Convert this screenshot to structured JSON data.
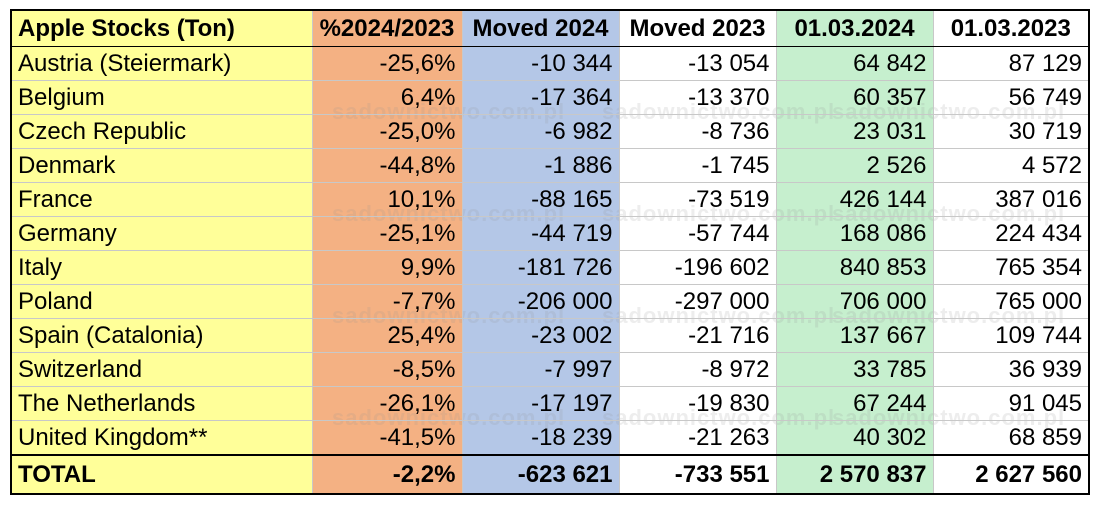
{
  "colors": {
    "country_col": "#ffff99",
    "pct_col": "#f4b183",
    "moved2024_col": "#b4c7e7",
    "moved2023_col": "#ffffff",
    "stock2024_col": "#c6efce",
    "stock2023_col": "#ffffff"
  },
  "watermark": "sadownictwo.com.pl",
  "table": {
    "headers": [
      "Apple Stocks (Ton)",
      "%2024/2023",
      "Moved 2024",
      "Moved 2023",
      "01.03.2024",
      "01.03.2023"
    ],
    "rows": [
      [
        "Austria (Steiermark)",
        "-25,6%",
        "-10 344",
        "-13 054",
        "64 842",
        "87 129"
      ],
      [
        "Belgium",
        "6,4%",
        "-17 364",
        "-13 370",
        "60 357",
        "56 749"
      ],
      [
        "Czech Republic",
        "-25,0%",
        "-6 982",
        "-8 736",
        "23 031",
        "30 719"
      ],
      [
        "Denmark",
        "-44,8%",
        "-1 886",
        "-1 745",
        "2 526",
        "4 572"
      ],
      [
        "France",
        "10,1%",
        "-88 165",
        "-73 519",
        "426 144",
        "387 016"
      ],
      [
        "Germany",
        "-25,1%",
        "-44 719",
        "-57 744",
        "168 086",
        "224 434"
      ],
      [
        "Italy",
        "9,9%",
        "-181 726",
        "-196 602",
        "840 853",
        "765 354"
      ],
      [
        "Poland",
        "-7,7%",
        "-206 000",
        "-297 000",
        "706 000",
        "765 000"
      ],
      [
        "Spain (Catalonia)",
        "25,4%",
        "-23 002",
        "-21 716",
        "137 667",
        "109 744"
      ],
      [
        "Switzerland",
        "-8,5%",
        "-7 997",
        "-8 972",
        "33 785",
        "36 939"
      ],
      [
        "The Netherlands",
        "-26,1%",
        "-17 197",
        "-19 830",
        "67 244",
        "91 045"
      ],
      [
        "United Kingdom**",
        "-41,5%",
        "-18 239",
        "-21 263",
        "40 302",
        "68 859"
      ]
    ],
    "total": [
      "TOTAL",
      "-2,2%",
      "-623 621",
      "-733 551",
      "2 570 837",
      "2 627 560"
    ]
  }
}
